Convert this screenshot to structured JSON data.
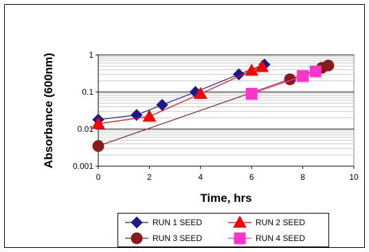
{
  "chart_data": {
    "type": "line",
    "xlabel": "Time, hrs",
    "ylabel": "Absorbance (600nm)",
    "xlim": [
      0,
      10
    ],
    "ylim": [
      0.001,
      1
    ],
    "y_scale": "log",
    "x_ticks": [
      "0",
      "2",
      "4",
      "6",
      "8",
      "10"
    ],
    "y_ticks": [
      "0.001",
      "0.01",
      "0.1",
      "1"
    ],
    "grid": "horizontal",
    "legend_position": "bottom",
    "series": [
      {
        "name": "RUN 1 SEED",
        "color": "#1a1a8c",
        "marker": "diamond",
        "x": [
          0,
          1.5,
          2.5,
          3.8,
          5.5,
          6.5
        ],
        "y": [
          0.018,
          0.024,
          0.045,
          0.1,
          0.3,
          0.55
        ]
      },
      {
        "name": "RUN 2 SEED",
        "color": "#ff0000",
        "marker": "triangle",
        "x": [
          0,
          2,
          4,
          6,
          6.4
        ],
        "y": [
          0.014,
          0.022,
          0.09,
          0.38,
          0.48
        ]
      },
      {
        "name": "RUN 3 SEED",
        "color": "#8b1a1a",
        "marker": "circle",
        "x": [
          0,
          7.5,
          8.75,
          9
        ],
        "y": [
          0.0035,
          0.22,
          0.45,
          0.52
        ]
      },
      {
        "name": "RUN 4 SEED",
        "color": "#ff33cc",
        "marker": "square",
        "x": [
          6,
          8,
          8.5
        ],
        "y": [
          0.09,
          0.27,
          0.36
        ]
      }
    ]
  }
}
